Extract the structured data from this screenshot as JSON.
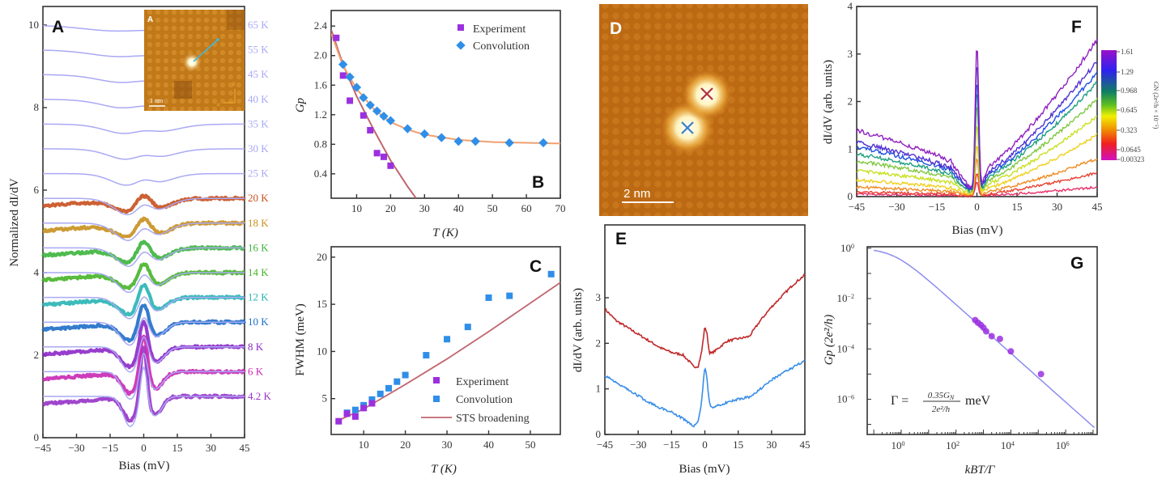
{
  "chart_data": [
    {
      "panel": "A",
      "type": "line",
      "xlabel": "Bias (mV)",
      "ylabel": "Normalized dI/dV",
      "xlim": [
        -45,
        45
      ],
      "ylim": [
        0,
        10.2
      ],
      "xticks": [
        -45,
        -30,
        -15,
        0,
        15,
        30,
        45
      ],
      "yticks": [
        0,
        2,
        4,
        6,
        8,
        10
      ],
      "series": [
        {
          "name": "4.2 K",
          "T": 4.2,
          "offset": 1.0,
          "color": "#9632c8",
          "measured": true
        },
        {
          "name": "6 K",
          "T": 6,
          "offset": 1.6,
          "color": "#c828b4",
          "measured": true
        },
        {
          "name": "8 K",
          "T": 8,
          "offset": 2.2,
          "color": "#8c28c8",
          "measured": true
        },
        {
          "name": "10 K",
          "T": 10,
          "offset": 2.8,
          "color": "#1e6ec8",
          "measured": true
        },
        {
          "name": "12 K",
          "T": 12,
          "offset": 3.4,
          "color": "#28b4b4",
          "measured": true
        },
        {
          "name": "14 K",
          "T": 14,
          "offset": 4.0,
          "color": "#46b428",
          "measured": true
        },
        {
          "name": "16 K",
          "T": 16,
          "offset": 4.6,
          "color": "#3cb43c",
          "measured": true
        },
        {
          "name": "18 K",
          "T": 18,
          "offset": 5.2,
          "color": "#c8901e",
          "measured": true
        },
        {
          "name": "20 K",
          "T": 20,
          "offset": 5.8,
          "color": "#c8501e",
          "measured": true
        },
        {
          "name": "25 K",
          "T": 25,
          "offset": 6.4,
          "color": "#a9a9f5",
          "measured": false
        },
        {
          "name": "30 K",
          "T": 30,
          "offset": 7.0,
          "color": "#a9a9f5",
          "measured": false
        },
        {
          "name": "35 K",
          "T": 35,
          "offset": 7.6,
          "color": "#a9a9f5",
          "measured": false
        },
        {
          "name": "40 K",
          "T": 40,
          "offset": 8.2,
          "color": "#a9a9f5",
          "measured": false
        },
        {
          "name": "45 K",
          "T": 45,
          "offset": 8.8,
          "color": "#a9a9f5",
          "measured": false
        },
        {
          "name": "55 K",
          "T": 55,
          "offset": 9.4,
          "color": "#a9a9f5",
          "measured": false
        },
        {
          "name": "65 K",
          "T": 65,
          "offset": 10.0,
          "color": "#a9a9f5",
          "measured": false
        }
      ],
      "simulated_color": "#a9a9f5",
      "inset": {
        "label": "A",
        "scalebar": "1 nm",
        "axis_a": "a",
        "axis_b": "b"
      }
    },
    {
      "panel": "B",
      "type": "scatter",
      "xlabel": "T (K)",
      "ylabel": "Gp",
      "xlim": [
        2.5,
        70
      ],
      "ylim": [
        0.07,
        2.61
      ],
      "xticks": [
        10,
        20,
        30,
        40,
        50,
        60,
        70
      ],
      "yticks": [
        0.4,
        0.8,
        1.2,
        1.6,
        2.0,
        2.4
      ],
      "legend": "top-right",
      "series": [
        {
          "name": "Experiment",
          "marker": "square",
          "color": "#9b30e0",
          "x": [
            4,
            6,
            8,
            12,
            14,
            16,
            18,
            20
          ],
          "y": [
            2.24,
            1.73,
            1.39,
            1.19,
            0.99,
            0.68,
            0.63,
            0.51
          ]
        },
        {
          "name": "Convolution",
          "marker": "diamond",
          "color": "#2f8fe8",
          "x": [
            6,
            8,
            10,
            12,
            14,
            16,
            18,
            20,
            25,
            30,
            35,
            40,
            45,
            55,
            65
          ],
          "y": [
            1.88,
            1.71,
            1.57,
            1.43,
            1.33,
            1.25,
            1.18,
            1.12,
            1.01,
            0.94,
            0.89,
            0.84,
            0.84,
            0.82,
            0.82
          ]
        }
      ],
      "fits": [
        {
          "color": "#c0666e",
          "x": [
            2.5,
            6,
            10,
            15,
            20,
            25,
            27.5
          ],
          "y": [
            2.35,
            1.88,
            1.45,
            1.0,
            0.58,
            0.23,
            0.07
          ]
        },
        {
          "color": "#f0a070",
          "x": [
            2.5,
            6,
            10,
            15,
            20,
            25,
            30,
            40,
            50,
            60,
            70
          ],
          "y": [
            2.3,
            1.86,
            1.55,
            1.28,
            1.1,
            1.0,
            0.93,
            0.86,
            0.83,
            0.82,
            0.81
          ]
        }
      ]
    },
    {
      "panel": "C",
      "type": "scatter",
      "xlabel": "T (K)",
      "ylabel": "FWHM (meV)",
      "xlim": [
        2.2,
        57.2
      ],
      "ylim": [
        1.2,
        21.1
      ],
      "xticks": [
        10,
        20,
        30,
        40,
        50
      ],
      "yticks": [
        5,
        10,
        15,
        20
      ],
      "legend": "bottom-right",
      "series": [
        {
          "name": "Experiment",
          "marker": "square",
          "color": "#9b30e0",
          "x": [
            4,
            6,
            8,
            10,
            12
          ],
          "y": [
            2.6,
            3.4,
            3.1,
            4.0,
            4.5
          ]
        },
        {
          "name": "Convolution",
          "marker": "square",
          "color": "#2f8fe8",
          "x": [
            6,
            8,
            10,
            12,
            14,
            16,
            18,
            20,
            25,
            30,
            35,
            40,
            45,
            55
          ],
          "y": [
            3.5,
            3.8,
            4.3,
            4.9,
            5.5,
            6.1,
            6.8,
            7.5,
            9.6,
            11.3,
            12.6,
            15.7,
            15.9,
            18.2
          ]
        },
        {
          "name": "STS broadening",
          "marker": "line",
          "color": "#c0666e",
          "x": [
            4,
            10,
            20,
            30,
            40,
            57.2
          ],
          "y": [
            2.7,
            3.9,
            6.5,
            9.2,
            12.1,
            17.3
          ]
        }
      ]
    },
    {
      "panel": "D",
      "type": "image",
      "scalebar": "2 nm",
      "markers": [
        {
          "symbol": "x",
          "color": "#b0303a"
        },
        {
          "symbol": "x",
          "color": "#3a7fc8"
        }
      ]
    },
    {
      "panel": "E",
      "type": "line",
      "xlabel": "Bias (mV)",
      "ylabel": "dI/dV (arb. units)",
      "xlim": [
        -45,
        45
      ],
      "ylim": [
        0,
        3.9
      ],
      "xticks": [
        -45,
        -30,
        -15,
        0,
        15,
        30,
        45
      ],
      "yticks": [
        0,
        1,
        2,
        3
      ],
      "series": [
        {
          "color": "#c0282a",
          "x": [
            -45,
            -40,
            -35,
            -30,
            -25,
            -20,
            -15,
            -10,
            -7,
            -5,
            -3,
            -1.5,
            0,
            1,
            2,
            3,
            5,
            10,
            15,
            20,
            25,
            30,
            35,
            40,
            45
          ],
          "y": [
            2.75,
            2.5,
            2.35,
            2.2,
            2.05,
            1.9,
            1.8,
            1.75,
            1.6,
            1.48,
            1.5,
            1.8,
            2.38,
            2.2,
            1.8,
            1.78,
            1.85,
            2.05,
            2.1,
            2.15,
            2.5,
            2.8,
            3.05,
            3.3,
            3.5
          ]
        },
        {
          "color": "#3a8ee8",
          "x": [
            -45,
            -40,
            -35,
            -30,
            -25,
            -20,
            -15,
            -10,
            -7,
            -5,
            -3,
            -1.5,
            0,
            1,
            2,
            3,
            5,
            10,
            15,
            20,
            25,
            30,
            35,
            40,
            45
          ],
          "y": [
            1.3,
            1.15,
            1.0,
            0.85,
            0.7,
            0.58,
            0.5,
            0.35,
            0.25,
            0.18,
            0.3,
            0.7,
            1.52,
            1.2,
            0.7,
            0.6,
            0.62,
            0.7,
            0.78,
            0.82,
            1.0,
            1.2,
            1.35,
            1.48,
            1.62
          ]
        }
      ]
    },
    {
      "panel": "F",
      "type": "line",
      "xlabel": "Bias (mV)",
      "ylabel": "dI/dV (arb. units)",
      "xlim": [
        -45,
        45
      ],
      "ylim": [
        0,
        4
      ],
      "xticks": [
        -45,
        -30,
        -15,
        0,
        15,
        30,
        45
      ],
      "yticks": [
        0,
        1,
        2,
        3,
        4
      ],
      "series_left": [
        0.05,
        0.1,
        0.2,
        0.35,
        0.55,
        0.75,
        0.9,
        1.05,
        1.15,
        1.4
      ],
      "series_right": [
        0.2,
        0.5,
        0.8,
        1.3,
        1.7,
        2.05,
        2.4,
        2.6,
        2.85,
        3.3
      ],
      "series_peak": [
        0.3,
        0.5,
        0.8,
        1.1,
        1.5,
        1.9,
        2.2,
        2.4,
        2.8,
        3.15
      ],
      "series_colors": [
        "#e8306a",
        "#e84030",
        "#f08a20",
        "#f0d020",
        "#c8e020",
        "#80c840",
        "#20a080",
        "#2050e0",
        "#5030d0",
        "#9020c0"
      ],
      "colorbar": {
        "label": "GN (2e²/h × 10⁻⁵)",
        "ticks": [
          "1.61",
          "1.29",
          "0.968",
          "0.645",
          "0.323",
          "0.0645",
          "0.00323"
        ],
        "tick_values": [
          1.61,
          1.29,
          0.968,
          0.645,
          0.323,
          0.0645,
          0.00323
        ],
        "colors": [
          "#9a10c8",
          "#5a20e0",
          "#1040f0",
          "#108060",
          "#40b030",
          "#f0f000",
          "#f0a000",
          "#f04020",
          "#e01090",
          "#c010c0"
        ]
      }
    },
    {
      "panel": "G",
      "type": "scatter",
      "xscale": "log",
      "yscale": "log",
      "xlabel": "kBT/Γ",
      "ylabel": "Gp (2e²/h)",
      "xlim": [
        0.057,
        14000000
      ],
      "ylim": [
        4e-08,
        1.15
      ],
      "xticks": [
        "10^0",
        "10^2",
        "10^4",
        "10^6"
      ],
      "yticks": [
        "10^0",
        "10^-2",
        "10^-4",
        "10^-6"
      ],
      "annotation": {
        "lhs": "Γ =",
        "num": "0.35G",
        "num_sub": "N",
        "den": "2e²/h",
        "unit": "meV"
      },
      "points": {
        "color": "#9b30e0",
        "x": [
          500,
          630,
          800,
          1000,
          1260,
          2000,
          4000,
          10000,
          126000
        ],
        "y": [
          0.0014,
          0.0011,
          0.0009,
          0.0007,
          0.0005,
          0.00032,
          0.00025,
          8e-05,
          1e-05
        ]
      },
      "fit": {
        "color": "#8c8cf0"
      }
    }
  ]
}
